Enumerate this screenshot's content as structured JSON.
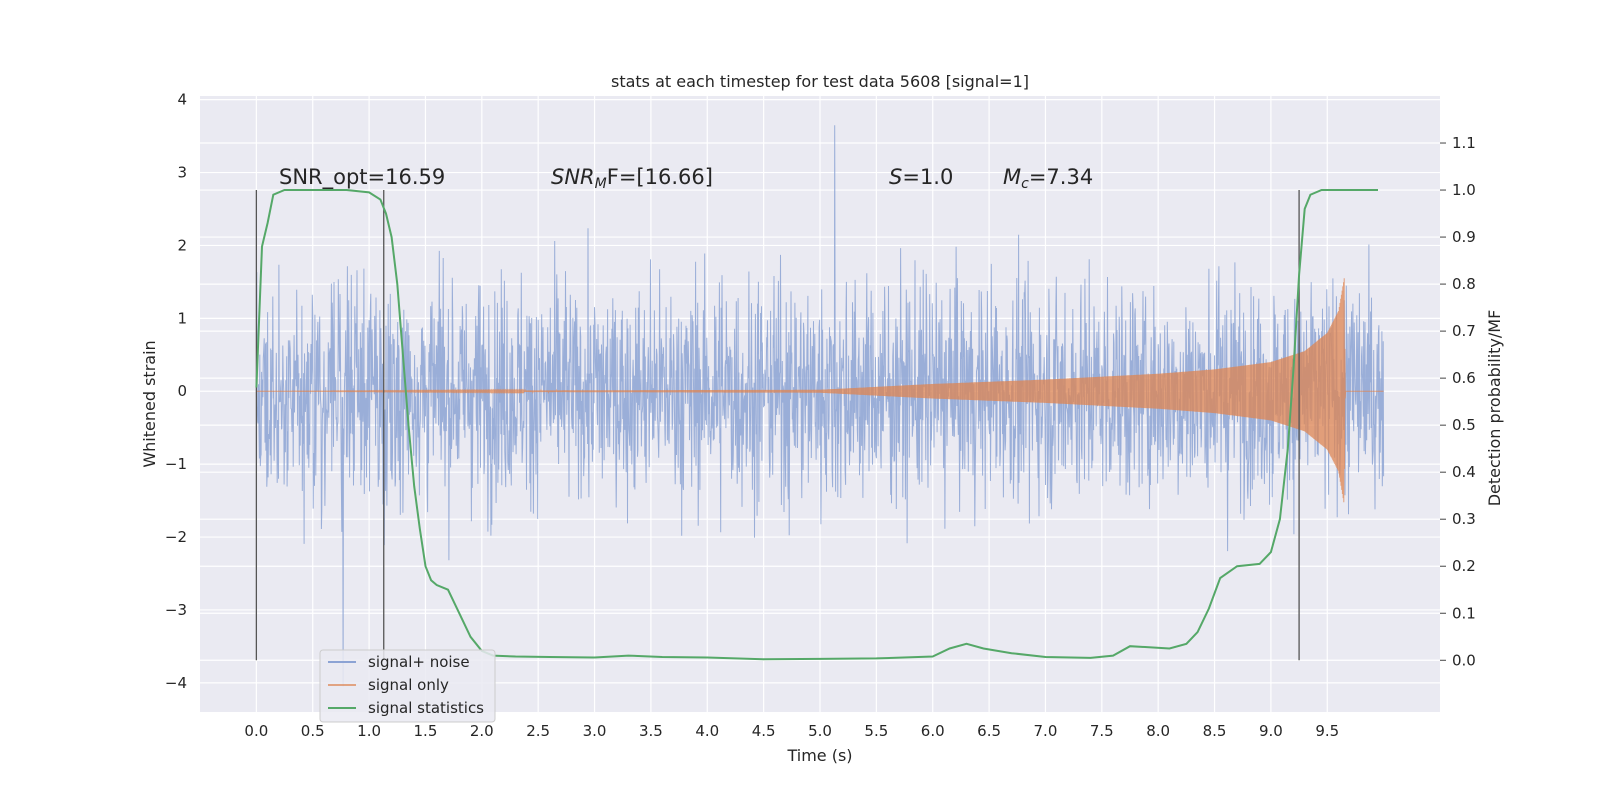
{
  "chart_data": {
    "type": "line",
    "title": "stats at each timestep for test data 5608 [signal=1]",
    "xlabel": "Time (s)",
    "ylabel": "Whitened strain",
    "y2label": "Detection probability/MF",
    "xlim": [
      -0.5,
      10.5
    ],
    "ylim": [
      -4.4,
      4.05
    ],
    "y2lim": [
      -0.11,
      1.2
    ],
    "xticks": [
      "0.0",
      "0.5",
      "1.0",
      "1.5",
      "2.0",
      "2.5",
      "3.0",
      "3.5",
      "4.0",
      "4.5",
      "5.0",
      "5.5",
      "6.0",
      "6.5",
      "7.0",
      "7.5",
      "8.0",
      "8.5",
      "9.0",
      "9.5"
    ],
    "yticks": [
      "4",
      "3",
      "2",
      "1",
      "0",
      "−1",
      "−2",
      "−3",
      "−4"
    ],
    "y2ticks": [
      "1.1",
      "1.0",
      "0.9",
      "0.8",
      "0.7",
      "0.6",
      "0.5",
      "0.4",
      "0.3",
      "0.2",
      "0.1",
      "0.0"
    ],
    "grid": true,
    "legend_position": "lower-left",
    "annotations": {
      "snr_opt": "SNR_opt=16.59",
      "snr_mf": "SNR_MF=[16.66]",
      "s": "S=1.0",
      "mc": "M_c=7.34"
    },
    "vertical_markers_x": [
      0.0,
      1.13,
      9.25
    ],
    "series": [
      {
        "name": "signal+ noise",
        "color": "#8ca3d4",
        "description_axis": "left",
        "x_range": [
          0.0,
          10.0
        ],
        "amplitude_typical": [
          -1.9,
          1.9
        ],
        "extremes": {
          "max": 3.65,
          "min": -4.05
        }
      },
      {
        "name": "signal only",
        "color": "#dd8452",
        "description_axis": "left",
        "envelope": [
          [
            0.0,
            0.0
          ],
          [
            5.0,
            0.02
          ],
          [
            5.5,
            0.06
          ],
          [
            6.0,
            0.1
          ],
          [
            6.5,
            0.13
          ],
          [
            7.0,
            0.16
          ],
          [
            7.5,
            0.2
          ],
          [
            8.0,
            0.24
          ],
          [
            8.5,
            0.3
          ],
          [
            9.0,
            0.4
          ],
          [
            9.3,
            0.55
          ],
          [
            9.5,
            0.8
          ],
          [
            9.6,
            1.1
          ],
          [
            9.65,
            1.55
          ],
          [
            9.66,
            0.0
          ],
          [
            10.0,
            0.0
          ]
        ]
      },
      {
        "name": "signal statistics",
        "color": "#55a868",
        "description_axis": "right",
        "points": [
          [
            0.0,
            0.58
          ],
          [
            0.05,
            0.88
          ],
          [
            0.1,
            0.93
          ],
          [
            0.15,
            0.99
          ],
          [
            0.25,
            1.0
          ],
          [
            0.4,
            1.0
          ],
          [
            0.6,
            1.0
          ],
          [
            0.8,
            1.0
          ],
          [
            1.0,
            0.995
          ],
          [
            1.1,
            0.98
          ],
          [
            1.15,
            0.95
          ],
          [
            1.2,
            0.9
          ],
          [
            1.25,
            0.8
          ],
          [
            1.3,
            0.65
          ],
          [
            1.35,
            0.5
          ],
          [
            1.4,
            0.37
          ],
          [
            1.45,
            0.28
          ],
          [
            1.5,
            0.2
          ],
          [
            1.55,
            0.17
          ],
          [
            1.6,
            0.16
          ],
          [
            1.7,
            0.15
          ],
          [
            1.8,
            0.1
          ],
          [
            1.9,
            0.05
          ],
          [
            2.0,
            0.02
          ],
          [
            2.1,
            0.01
          ],
          [
            2.3,
            0.008
          ],
          [
            2.6,
            0.007
          ],
          [
            3.0,
            0.006
          ],
          [
            3.3,
            0.01
          ],
          [
            3.6,
            0.007
          ],
          [
            4.0,
            0.006
          ],
          [
            4.5,
            0.002
          ],
          [
            5.0,
            0.003
          ],
          [
            5.5,
            0.004
          ],
          [
            6.0,
            0.008
          ],
          [
            6.15,
            0.025
          ],
          [
            6.3,
            0.035
          ],
          [
            6.45,
            0.025
          ],
          [
            6.7,
            0.015
          ],
          [
            7.0,
            0.007
          ],
          [
            7.4,
            0.005
          ],
          [
            7.6,
            0.01
          ],
          [
            7.75,
            0.03
          ],
          [
            7.9,
            0.028
          ],
          [
            8.1,
            0.025
          ],
          [
            8.25,
            0.035
          ],
          [
            8.35,
            0.06
          ],
          [
            8.45,
            0.11
          ],
          [
            8.55,
            0.175
          ],
          [
            8.7,
            0.2
          ],
          [
            8.9,
            0.205
          ],
          [
            9.0,
            0.23
          ],
          [
            9.08,
            0.3
          ],
          [
            9.15,
            0.45
          ],
          [
            9.2,
            0.62
          ],
          [
            9.25,
            0.82
          ],
          [
            9.3,
            0.96
          ],
          [
            9.35,
            0.99
          ],
          [
            9.45,
            1.0
          ],
          [
            9.7,
            1.0
          ],
          [
            9.95,
            1.0
          ]
        ]
      }
    ]
  }
}
